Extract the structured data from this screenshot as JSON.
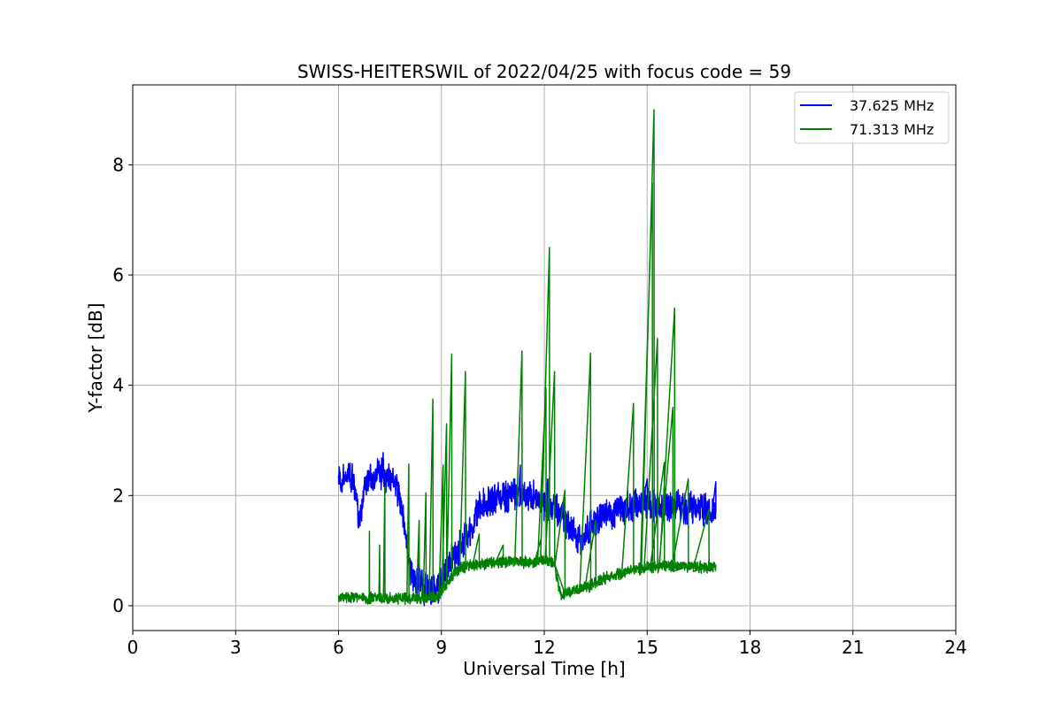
{
  "chart_data": {
    "type": "line",
    "title": "SWISS-HEITERSWIL of 2022/04/25 with focus code = 59",
    "xlabel": "Universal Time [h]",
    "ylabel": "Y-factor [dB]",
    "xlim": [
      0,
      24
    ],
    "ylim": [
      -0.45,
      9.45
    ],
    "xticks": [
      0,
      3,
      6,
      9,
      12,
      15,
      18,
      21,
      24
    ],
    "yticks": [
      0,
      2,
      4,
      6,
      8
    ],
    "grid": true,
    "legend_position": "top-right",
    "colors": {
      "series_1": "#0000ff",
      "series_2": "#008000",
      "grid": "#b0b0b0"
    },
    "series": [
      {
        "name": "37.625 MHz",
        "color": "#0000ff",
        "band": 0.5,
        "points": [
          [
            6.0,
            2.3
          ],
          [
            6.2,
            2.35
          ],
          [
            6.4,
            2.3
          ],
          [
            6.55,
            1.9
          ],
          [
            6.6,
            1.45
          ],
          [
            6.65,
            1.7
          ],
          [
            6.8,
            2.3
          ],
          [
            7.0,
            2.3
          ],
          [
            7.3,
            2.4
          ],
          [
            7.5,
            2.3
          ],
          [
            7.7,
            2.15
          ],
          [
            7.9,
            1.6
          ],
          [
            8.1,
            0.6
          ],
          [
            8.3,
            0.45
          ],
          [
            8.5,
            0.35
          ],
          [
            8.7,
            0.3
          ],
          [
            8.9,
            0.35
          ],
          [
            9.1,
            0.55
          ],
          [
            9.3,
            0.85
          ],
          [
            9.5,
            1.0
          ],
          [
            9.7,
            1.25
          ],
          [
            9.9,
            1.4
          ],
          [
            10.0,
            1.6
          ],
          [
            10.1,
            1.75
          ],
          [
            10.3,
            1.85
          ],
          [
            10.6,
            1.95
          ],
          [
            11.0,
            2.0
          ],
          [
            11.3,
            2.05
          ],
          [
            11.5,
            2.0
          ],
          [
            11.8,
            1.95
          ],
          [
            12.0,
            1.85
          ],
          [
            12.4,
            1.75
          ],
          [
            12.6,
            1.55
          ],
          [
            12.8,
            1.35
          ],
          [
            13.0,
            1.15
          ],
          [
            13.2,
            1.35
          ],
          [
            13.5,
            1.5
          ],
          [
            13.8,
            1.65
          ],
          [
            14.0,
            1.7
          ],
          [
            14.5,
            1.8
          ],
          [
            15.0,
            1.85
          ],
          [
            15.5,
            1.85
          ],
          [
            16.0,
            1.8
          ],
          [
            16.5,
            1.75
          ],
          [
            17.0,
            1.7
          ]
        ],
        "spikes": [
          [
            7.3,
            2.78
          ],
          [
            8.5,
            0.0
          ],
          [
            11.3,
            2.55
          ],
          [
            12.1,
            2.3
          ],
          [
            15.0,
            2.3
          ],
          [
            17.0,
            2.25
          ]
        ]
      },
      {
        "name": "71.313 MHz",
        "color": "#008000",
        "band": 0.18,
        "points": [
          [
            6.0,
            0.15
          ],
          [
            6.5,
            0.15
          ],
          [
            7.0,
            0.14
          ],
          [
            7.5,
            0.13
          ],
          [
            8.0,
            0.13
          ],
          [
            8.5,
            0.14
          ],
          [
            8.9,
            0.17
          ],
          [
            9.0,
            0.25
          ],
          [
            9.2,
            0.45
          ],
          [
            9.4,
            0.6
          ],
          [
            9.6,
            0.7
          ],
          [
            10.0,
            0.75
          ],
          [
            10.5,
            0.78
          ],
          [
            11.0,
            0.8
          ],
          [
            11.5,
            0.8
          ],
          [
            12.0,
            0.82
          ],
          [
            12.3,
            0.78
          ],
          [
            12.4,
            0.4
          ],
          [
            12.5,
            0.2
          ],
          [
            12.8,
            0.25
          ],
          [
            13.0,
            0.3
          ],
          [
            13.3,
            0.35
          ],
          [
            13.6,
            0.45
          ],
          [
            14.0,
            0.55
          ],
          [
            14.5,
            0.65
          ],
          [
            15.0,
            0.7
          ],
          [
            15.5,
            0.72
          ],
          [
            16.0,
            0.72
          ],
          [
            16.5,
            0.7
          ],
          [
            17.0,
            0.72
          ]
        ],
        "spikes": [
          [
            6.9,
            1.35
          ],
          [
            7.2,
            1.1
          ],
          [
            7.35,
            2.15
          ],
          [
            8.05,
            2.57
          ],
          [
            8.35,
            1.55
          ],
          [
            8.55,
            2.05
          ],
          [
            8.75,
            3.75
          ],
          [
            9.05,
            2.55
          ],
          [
            9.15,
            3.3
          ],
          [
            9.3,
            4.57
          ],
          [
            9.7,
            4.25
          ],
          [
            10.1,
            1.3
          ],
          [
            10.8,
            1.1
          ],
          [
            11.35,
            4.62
          ],
          [
            11.9,
            1.2
          ],
          [
            12.05,
            3.95
          ],
          [
            12.15,
            6.5
          ],
          [
            12.3,
            4.25
          ],
          [
            12.6,
            2.1
          ],
          [
            13.35,
            4.58
          ],
          [
            13.5,
            1.55
          ],
          [
            14.6,
            3.67
          ],
          [
            15.15,
            7.67
          ],
          [
            15.2,
            9.0
          ],
          [
            15.3,
            4.85
          ],
          [
            15.5,
            2.6
          ],
          [
            15.75,
            3.6
          ],
          [
            15.8,
            5.4
          ],
          [
            16.2,
            2.3
          ],
          [
            16.8,
            1.75
          ]
        ]
      }
    ]
  }
}
